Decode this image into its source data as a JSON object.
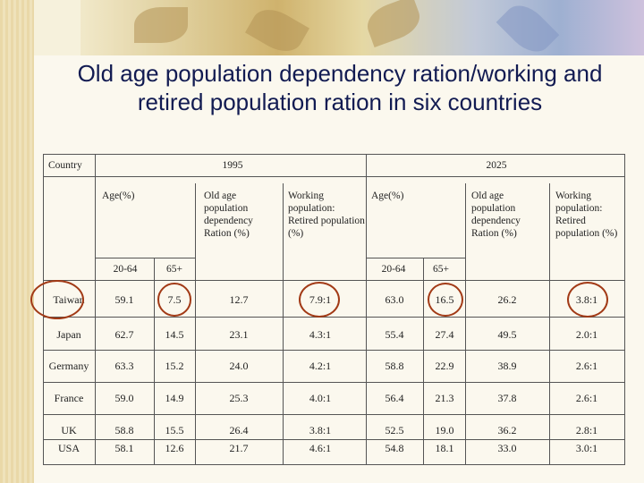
{
  "title": "Old age population dependency ration/working and retired population ration in six countries",
  "header": {
    "country": "Country",
    "year1": "1995",
    "year2": "2025",
    "age": "Age(%)",
    "old_age": "Old age population dependency Ration (%)",
    "working": "Working population: Retired population (%)",
    "working2025": "Working population: Retired population (%)",
    "age_20_64": "20-64",
    "age_65plus": "65+"
  },
  "rows": [
    {
      "country": "Taiwan",
      "v": [
        "59.1",
        "7.5",
        "12.7",
        "7.9:1",
        "63.0",
        "16.5",
        "26.2",
        "3.8:1"
      ]
    },
    {
      "country": "Japan",
      "v": [
        "62.7",
        "14.5",
        "23.1",
        "4.3:1",
        "55.4",
        "27.4",
        "49.5",
        "2.0:1"
      ]
    },
    {
      "country": "Germany",
      "v": [
        "63.3",
        "15.2",
        "24.0",
        "4.2:1",
        "58.8",
        "22.9",
        "38.9",
        "2.6:1"
      ]
    },
    {
      "country": "France",
      "v": [
        "59.0",
        "14.9",
        "25.3",
        "4.0:1",
        "56.4",
        "21.3",
        "37.8",
        "2.6:1"
      ]
    },
    {
      "country": "UK",
      "v": [
        "58.8",
        "15.5",
        "26.4",
        "3.8:1",
        "52.5",
        "19.0",
        "36.2",
        "2.8:1"
      ]
    },
    {
      "country": "USA",
      "v": [
        "58.1",
        "12.6",
        "21.7",
        "4.6:1",
        "54.8",
        "18.1",
        "33.0",
        "3.0:1"
      ]
    }
  ],
  "colors": {
    "title": "#121b52",
    "grid": "#555555",
    "highlight": "#a23a16"
  }
}
